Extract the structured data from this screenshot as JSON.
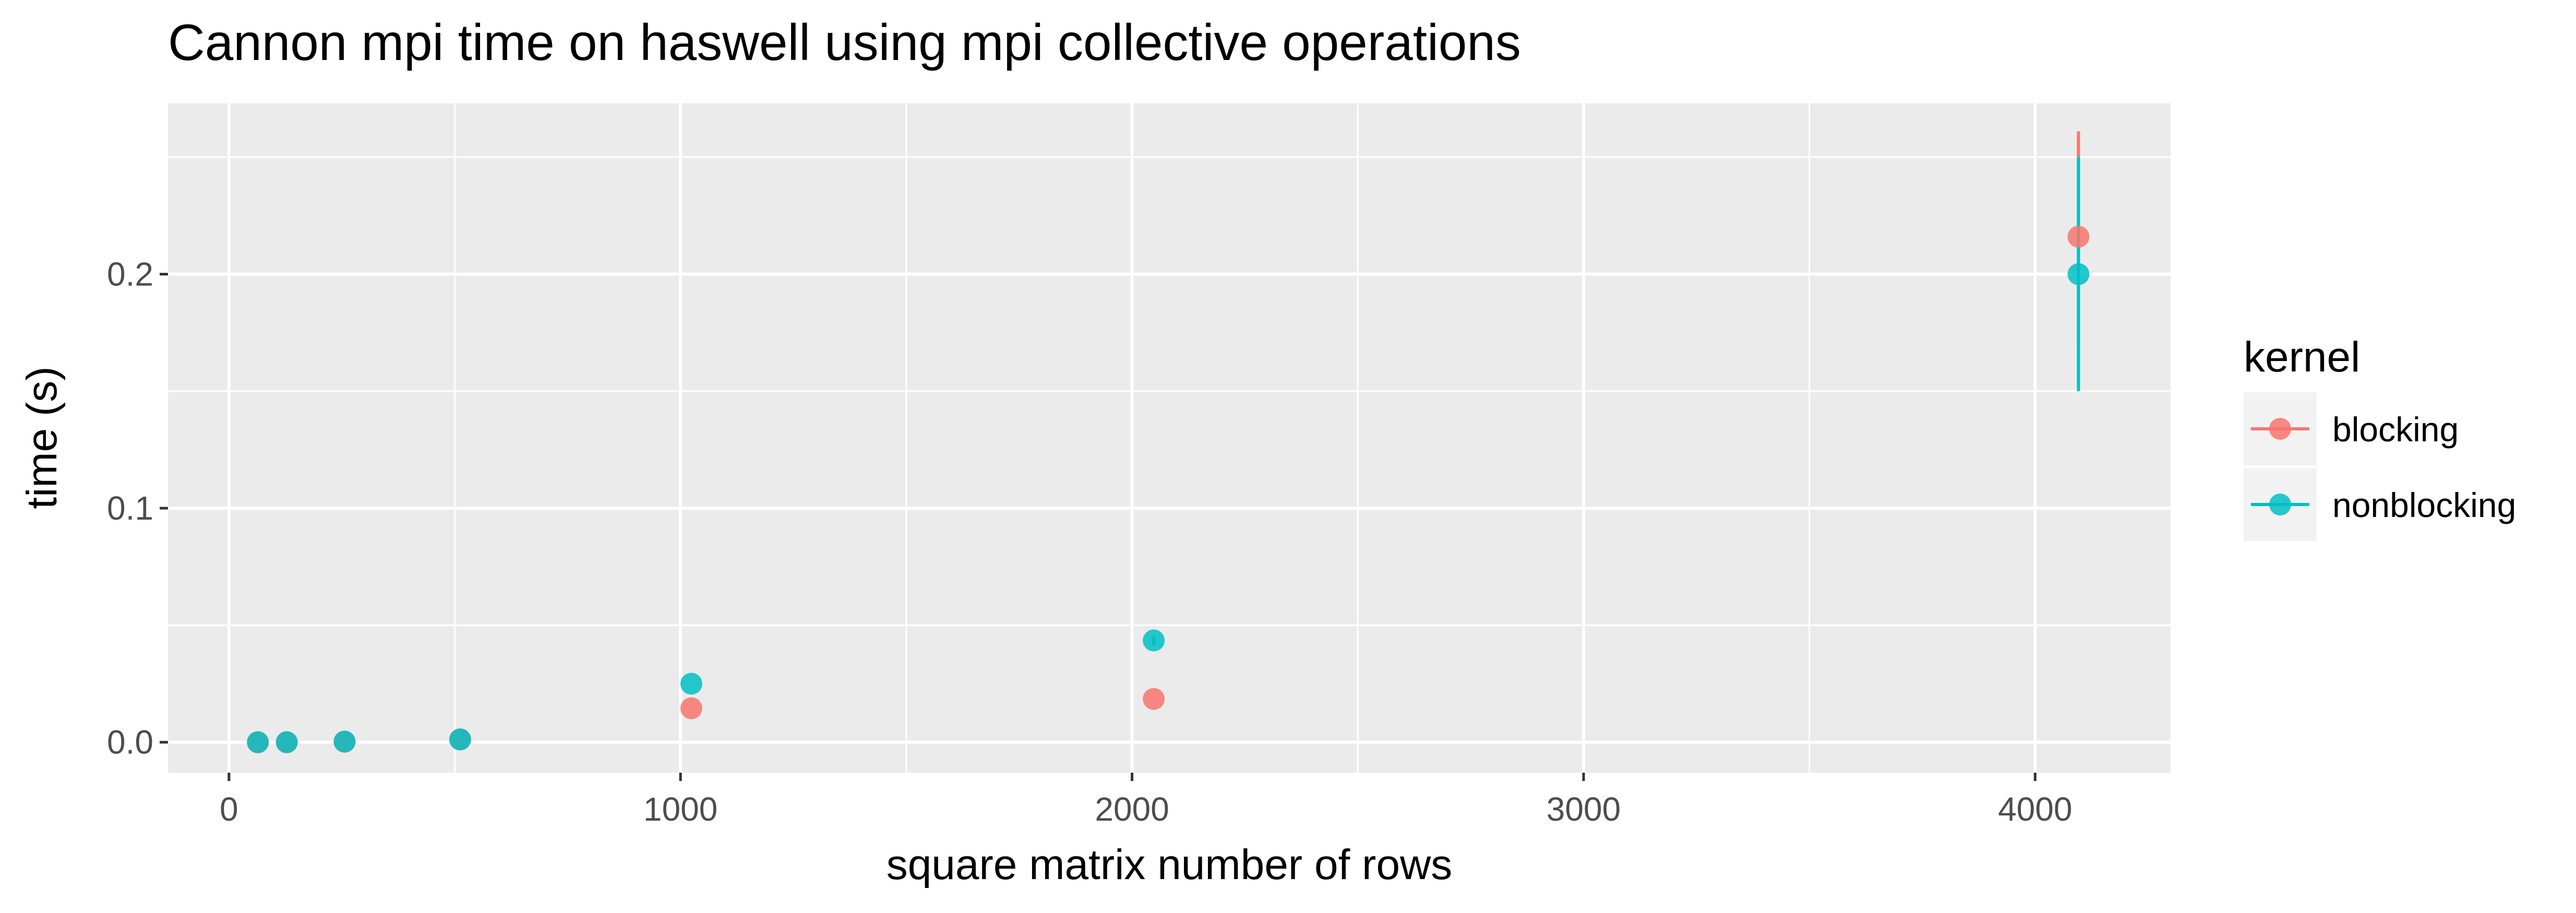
{
  "chart_data": {
    "type": "scatter",
    "title": "Cannon mpi time on haswell using mpi collective operations",
    "xlabel": "square matrix number of rows",
    "ylabel": "time (s)",
    "xlim": [
      -135,
      4300
    ],
    "ylim": [
      -0.013,
      0.273
    ],
    "x_ticks": [
      0,
      1000,
      2000,
      3000,
      4000
    ],
    "y_ticks": [
      0.0,
      0.1,
      0.2
    ],
    "y_tick_labels": [
      "0.0",
      "0.1",
      "0.2"
    ],
    "grid": true,
    "legend": {
      "title": "kernel",
      "placement": "right",
      "entries": [
        "blocking",
        "nonblocking"
      ]
    },
    "series": [
      {
        "name": "blocking",
        "color": "#F8766D",
        "points": [
          {
            "x": 64,
            "y": 0.0,
            "ymin": 0.0,
            "ymax": 0.0
          },
          {
            "x": 128,
            "y": 0.0,
            "ymin": 0.0,
            "ymax": 0.0
          },
          {
            "x": 256,
            "y": 0.0002,
            "ymin": 0.0002,
            "ymax": 0.0002
          },
          {
            "x": 512,
            "y": 0.0012,
            "ymin": 0.0012,
            "ymax": 0.0012
          },
          {
            "x": 1024,
            "y": 0.0145,
            "ymin": 0.0145,
            "ymax": 0.0145
          },
          {
            "x": 2048,
            "y": 0.0185,
            "ymin": 0.0185,
            "ymax": 0.0185
          },
          {
            "x": 4096,
            "y": 0.216,
            "ymin": 0.171,
            "ymax": 0.261
          }
        ]
      },
      {
        "name": "nonblocking",
        "color": "#00BFC4",
        "points": [
          {
            "x": 64,
            "y": 0.0,
            "ymin": 0.0,
            "ymax": 0.0
          },
          {
            "x": 128,
            "y": 0.0,
            "ymin": 0.0,
            "ymax": 0.0
          },
          {
            "x": 256,
            "y": 0.0003,
            "ymin": 0.0003,
            "ymax": 0.0003
          },
          {
            "x": 512,
            "y": 0.0012,
            "ymin": 0.0012,
            "ymax": 0.0012
          },
          {
            "x": 1024,
            "y": 0.025,
            "ymin": 0.025,
            "ymax": 0.025
          },
          {
            "x": 2048,
            "y": 0.0435,
            "ymin": 0.0415,
            "ymax": 0.0455
          },
          {
            "x": 4096,
            "y": 0.2,
            "ymin": 0.15,
            "ymax": 0.25
          }
        ]
      }
    ]
  }
}
